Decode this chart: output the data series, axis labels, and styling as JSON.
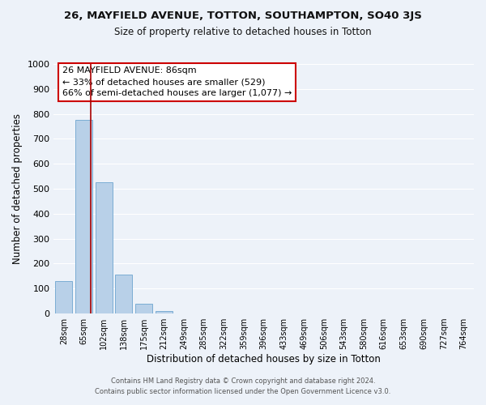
{
  "title": "26, MAYFIELD AVENUE, TOTTON, SOUTHAMPTON, SO40 3JS",
  "subtitle": "Size of property relative to detached houses in Totton",
  "xlabel": "Distribution of detached houses by size in Totton",
  "ylabel": "Number of detached properties",
  "bar_labels": [
    "28sqm",
    "65sqm",
    "102sqm",
    "138sqm",
    "175sqm",
    "212sqm",
    "249sqm",
    "285sqm",
    "322sqm",
    "359sqm",
    "396sqm",
    "433sqm",
    "469sqm",
    "506sqm",
    "543sqm",
    "580sqm",
    "616sqm",
    "653sqm",
    "690sqm",
    "727sqm",
    "764sqm"
  ],
  "bar_values": [
    130,
    775,
    525,
    155,
    40,
    10,
    0,
    0,
    0,
    0,
    0,
    0,
    0,
    0,
    0,
    0,
    0,
    0,
    0,
    0,
    0
  ],
  "bar_color": "#b8d0e8",
  "bar_edge_color": "#7badd4",
  "property_line_color": "#aa0000",
  "ylim": [
    0,
    1000
  ],
  "yticks": [
    0,
    100,
    200,
    300,
    400,
    500,
    600,
    700,
    800,
    900,
    1000
  ],
  "annotation_title": "26 MAYFIELD AVENUE: 86sqm",
  "annotation_line1": "← 33% of detached houses are smaller (529)",
  "annotation_line2": "66% of semi-detached houses are larger (1,077) →",
  "footer_line1": "Contains HM Land Registry data © Crown copyright and database right 2024.",
  "footer_line2": "Contains public sector information licensed under the Open Government Licence v3.0.",
  "bg_color": "#edf2f9",
  "grid_color": "#ffffff"
}
